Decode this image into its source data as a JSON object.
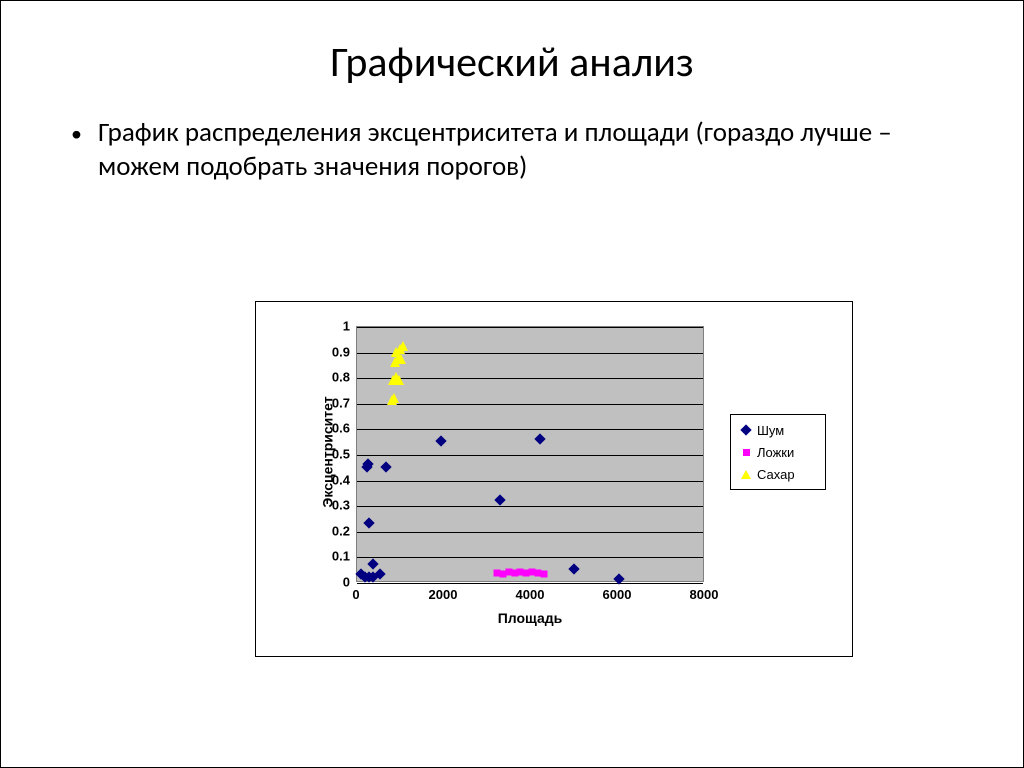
{
  "slide": {
    "title": "Графический анализ",
    "bullet": "График распределения эксцентриситета и площади (гораздо лучше – можем подобрать значения порогов)"
  },
  "chart": {
    "type": "scatter",
    "plot_background": "#c0c0c0",
    "outer_border_color": "#000000",
    "grid_color": "#000000",
    "x": {
      "label": "Площадь",
      "min": 0,
      "max": 8000,
      "tick_step": 2000,
      "ticks": [
        0,
        2000,
        4000,
        6000,
        8000
      ]
    },
    "y": {
      "label": "Эксцентриситет",
      "min": 0,
      "max": 1,
      "tick_step": 0.1,
      "ticks": [
        0,
        0.1,
        0.2,
        0.3,
        0.4,
        0.5,
        0.6,
        0.7,
        0.8,
        0.9,
        1
      ]
    },
    "label_fontsize": 14,
    "tick_fontsize": 13,
    "series": [
      {
        "name": "Шум",
        "label": "Шум",
        "marker": "diamond",
        "color": "#000080",
        "size": 8,
        "points": [
          [
            120,
            0.03
          ],
          [
            200,
            0.02
          ],
          [
            300,
            0.02
          ],
          [
            380,
            0.02
          ],
          [
            560,
            0.03
          ],
          [
            380,
            0.07
          ],
          [
            300,
            0.23
          ],
          [
            250,
            0.45
          ],
          [
            280,
            0.46
          ],
          [
            700,
            0.45
          ],
          [
            1950,
            0.55
          ],
          [
            4220,
            0.56
          ],
          [
            3320,
            0.32
          ],
          [
            5000,
            0.05
          ],
          [
            6050,
            0.01
          ]
        ]
      },
      {
        "name": "Ложки",
        "label": "Ложки",
        "marker": "square",
        "color": "#ff00ff",
        "size": 7,
        "points": [
          [
            3250,
            0.035
          ],
          [
            3380,
            0.03
          ],
          [
            3520,
            0.04
          ],
          [
            3650,
            0.035
          ],
          [
            3780,
            0.04
          ],
          [
            3900,
            0.035
          ],
          [
            4050,
            0.04
          ],
          [
            4180,
            0.035
          ],
          [
            4320,
            0.03
          ]
        ]
      },
      {
        "name": "Сахар",
        "label": "Сахар",
        "marker": "triangle",
        "color": "#ffff00",
        "size": 10,
        "points": [
          [
            820,
            0.71
          ],
          [
            870,
            0.72
          ],
          [
            850,
            0.79
          ],
          [
            920,
            0.8
          ],
          [
            980,
            0.79
          ],
          [
            900,
            0.86
          ],
          [
            970,
            0.87
          ],
          [
            1040,
            0.87
          ],
          [
            930,
            0.9
          ],
          [
            1000,
            0.91
          ],
          [
            1070,
            0.92
          ]
        ]
      }
    ],
    "legend": {
      "position": "right",
      "items": [
        "Шум",
        "Ложки",
        "Сахар"
      ]
    }
  }
}
